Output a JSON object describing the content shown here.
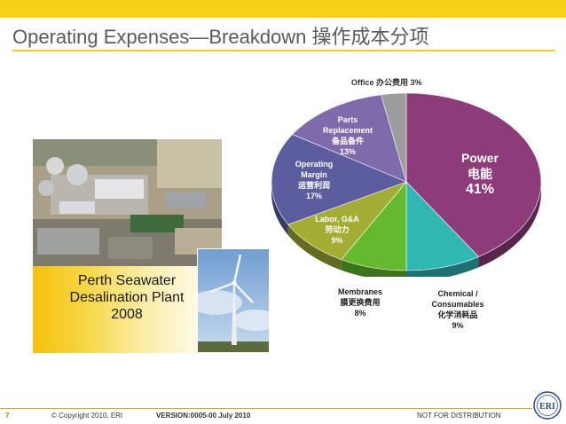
{
  "title": "Operating Expenses—Breakdown 操作成本分项",
  "photo_caption": {
    "line1": "Perth Seawater",
    "line2": "Desalination Plant",
    "line3": "2008"
  },
  "chart_data": {
    "type": "pie",
    "slices": [
      {
        "label": "Power",
        "label_zh": "电能",
        "value": 41,
        "value_label": "41%",
        "color": "#8e3b7a"
      },
      {
        "label": "Chemical / Consumables",
        "label_zh": "化学消耗品",
        "value": 9,
        "value_label": "9%",
        "color": "#2fb7b4"
      },
      {
        "label": "Membranes",
        "label_zh": "膜更换费用",
        "value": 8,
        "value_label": "8%",
        "color": "#64b92e"
      },
      {
        "label": "Labor, G&A",
        "label_zh": "劳动力",
        "value": 9,
        "value_label": "9%",
        "color": "#a3ad33"
      },
      {
        "label": "Operating Margin",
        "label_zh": "运营利润",
        "value": 17,
        "value_label": "17%",
        "color": "#5b5d9e"
      },
      {
        "label": "Parts Replacement",
        "label_zh": "备品备件",
        "value": 13,
        "value_label": "13%",
        "color": "#7f6bab"
      },
      {
        "label": "Office",
        "label_zh": "办公费用",
        "value": 3,
        "value_label": "3%",
        "color": "#9c9c9c"
      }
    ]
  },
  "labels": {
    "office": "Office 办公费用 3%",
    "parts_1": "Parts",
    "parts_2": "Replacement",
    "parts_3": "备品备件",
    "parts_4": "13%",
    "margin_1": "Operating",
    "margin_2": "Margin",
    "margin_3": "运营利润",
    "margin_4": "17%",
    "labor_1": "Labor, G&A",
    "labor_2": "劳动力",
    "labor_3": "9%",
    "power_1": "Power",
    "power_2": "电能",
    "power_3": "41%",
    "membranes_1": "Membranes",
    "membranes_2": "膜更换费用",
    "membranes_3": "8%",
    "chem_1": "Chemical /",
    "chem_2": "Consumables",
    "chem_3": "化学消耗品",
    "chem_4": "9%"
  },
  "footer": {
    "page_number": "7",
    "copyright": "© Copyright 2010, ERI",
    "version": "VERSION:0005-00 July 2010",
    "distribution": "NOT FOR DISTRIBUTION",
    "logo_text": "ERI"
  },
  "colors": {
    "accent_yellow": "#f7d117",
    "title_gray": "#5a5a5a"
  }
}
